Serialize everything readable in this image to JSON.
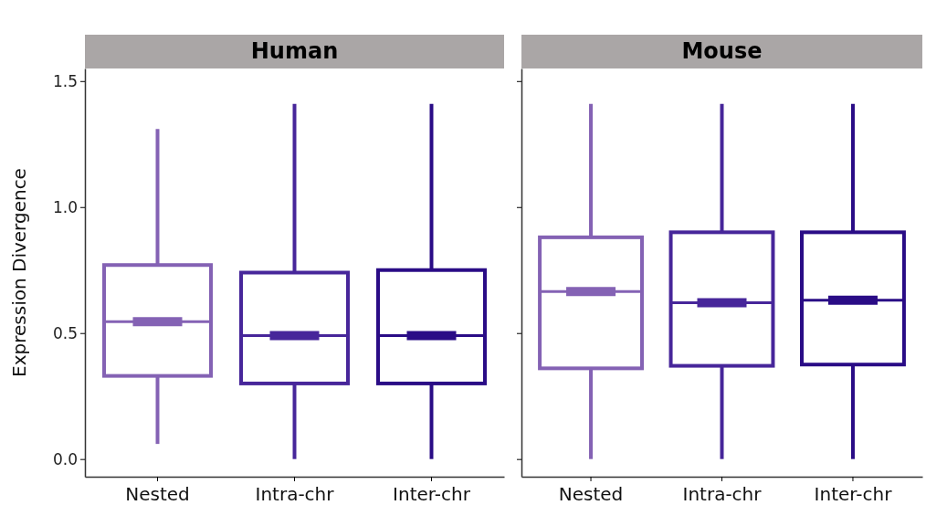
{
  "chart_data": [
    {
      "type": "box",
      "title": "Human",
      "ylabel": "Expression Divergence",
      "categories": [
        "Nested",
        "Intra-chr",
        "Inter-chr"
      ],
      "colors": [
        "#8462b4",
        "#47269a",
        "#2a0c86"
      ],
      "ylim": [
        -0.07,
        1.55
      ],
      "yticks": [
        {
          "value": 0,
          "label": "0.0"
        },
        {
          "value": 0.5,
          "label": "0.5"
        },
        {
          "value": 1,
          "label": "1.0"
        },
        {
          "value": 1.5,
          "label": "1.5"
        }
      ],
      "boxes": [
        {
          "low": 0.06,
          "q1": 0.33,
          "median": 0.545,
          "q3": 0.77,
          "high": 1.31
        },
        {
          "low": 0,
          "q1": 0.3,
          "median": 0.49,
          "q3": 0.74,
          "high": 1.41
        },
        {
          "low": 0,
          "q1": 0.3,
          "median": 0.49,
          "q3": 0.75,
          "high": 1.41
        }
      ]
    },
    {
      "type": "box",
      "title": "Mouse",
      "categories": [
        "Nested",
        "Intra-chr",
        "Inter-chr"
      ],
      "colors": [
        "#8462b4",
        "#47269a",
        "#2a0c86"
      ],
      "ylim": [
        -0.07,
        1.55
      ],
      "yticks": [
        {
          "value": 0,
          "label": null
        },
        {
          "value": 0.5,
          "label": null
        },
        {
          "value": 1,
          "label": null
        },
        {
          "value": 1.5,
          "label": null
        }
      ],
      "tick_labels": "x",
      "boxes": [
        {
          "low": 0,
          "q1": 0.36,
          "median": 0.665,
          "q3": 0.88,
          "high": 1.41
        },
        {
          "low": 0,
          "q1": 0.37,
          "median": 0.62,
          "q3": 0.9,
          "high": 1.41
        },
        {
          "low": 0,
          "q1": 0.375,
          "median": 0.63,
          "q3": 0.9,
          "high": 1.41
        }
      ]
    }
  ]
}
